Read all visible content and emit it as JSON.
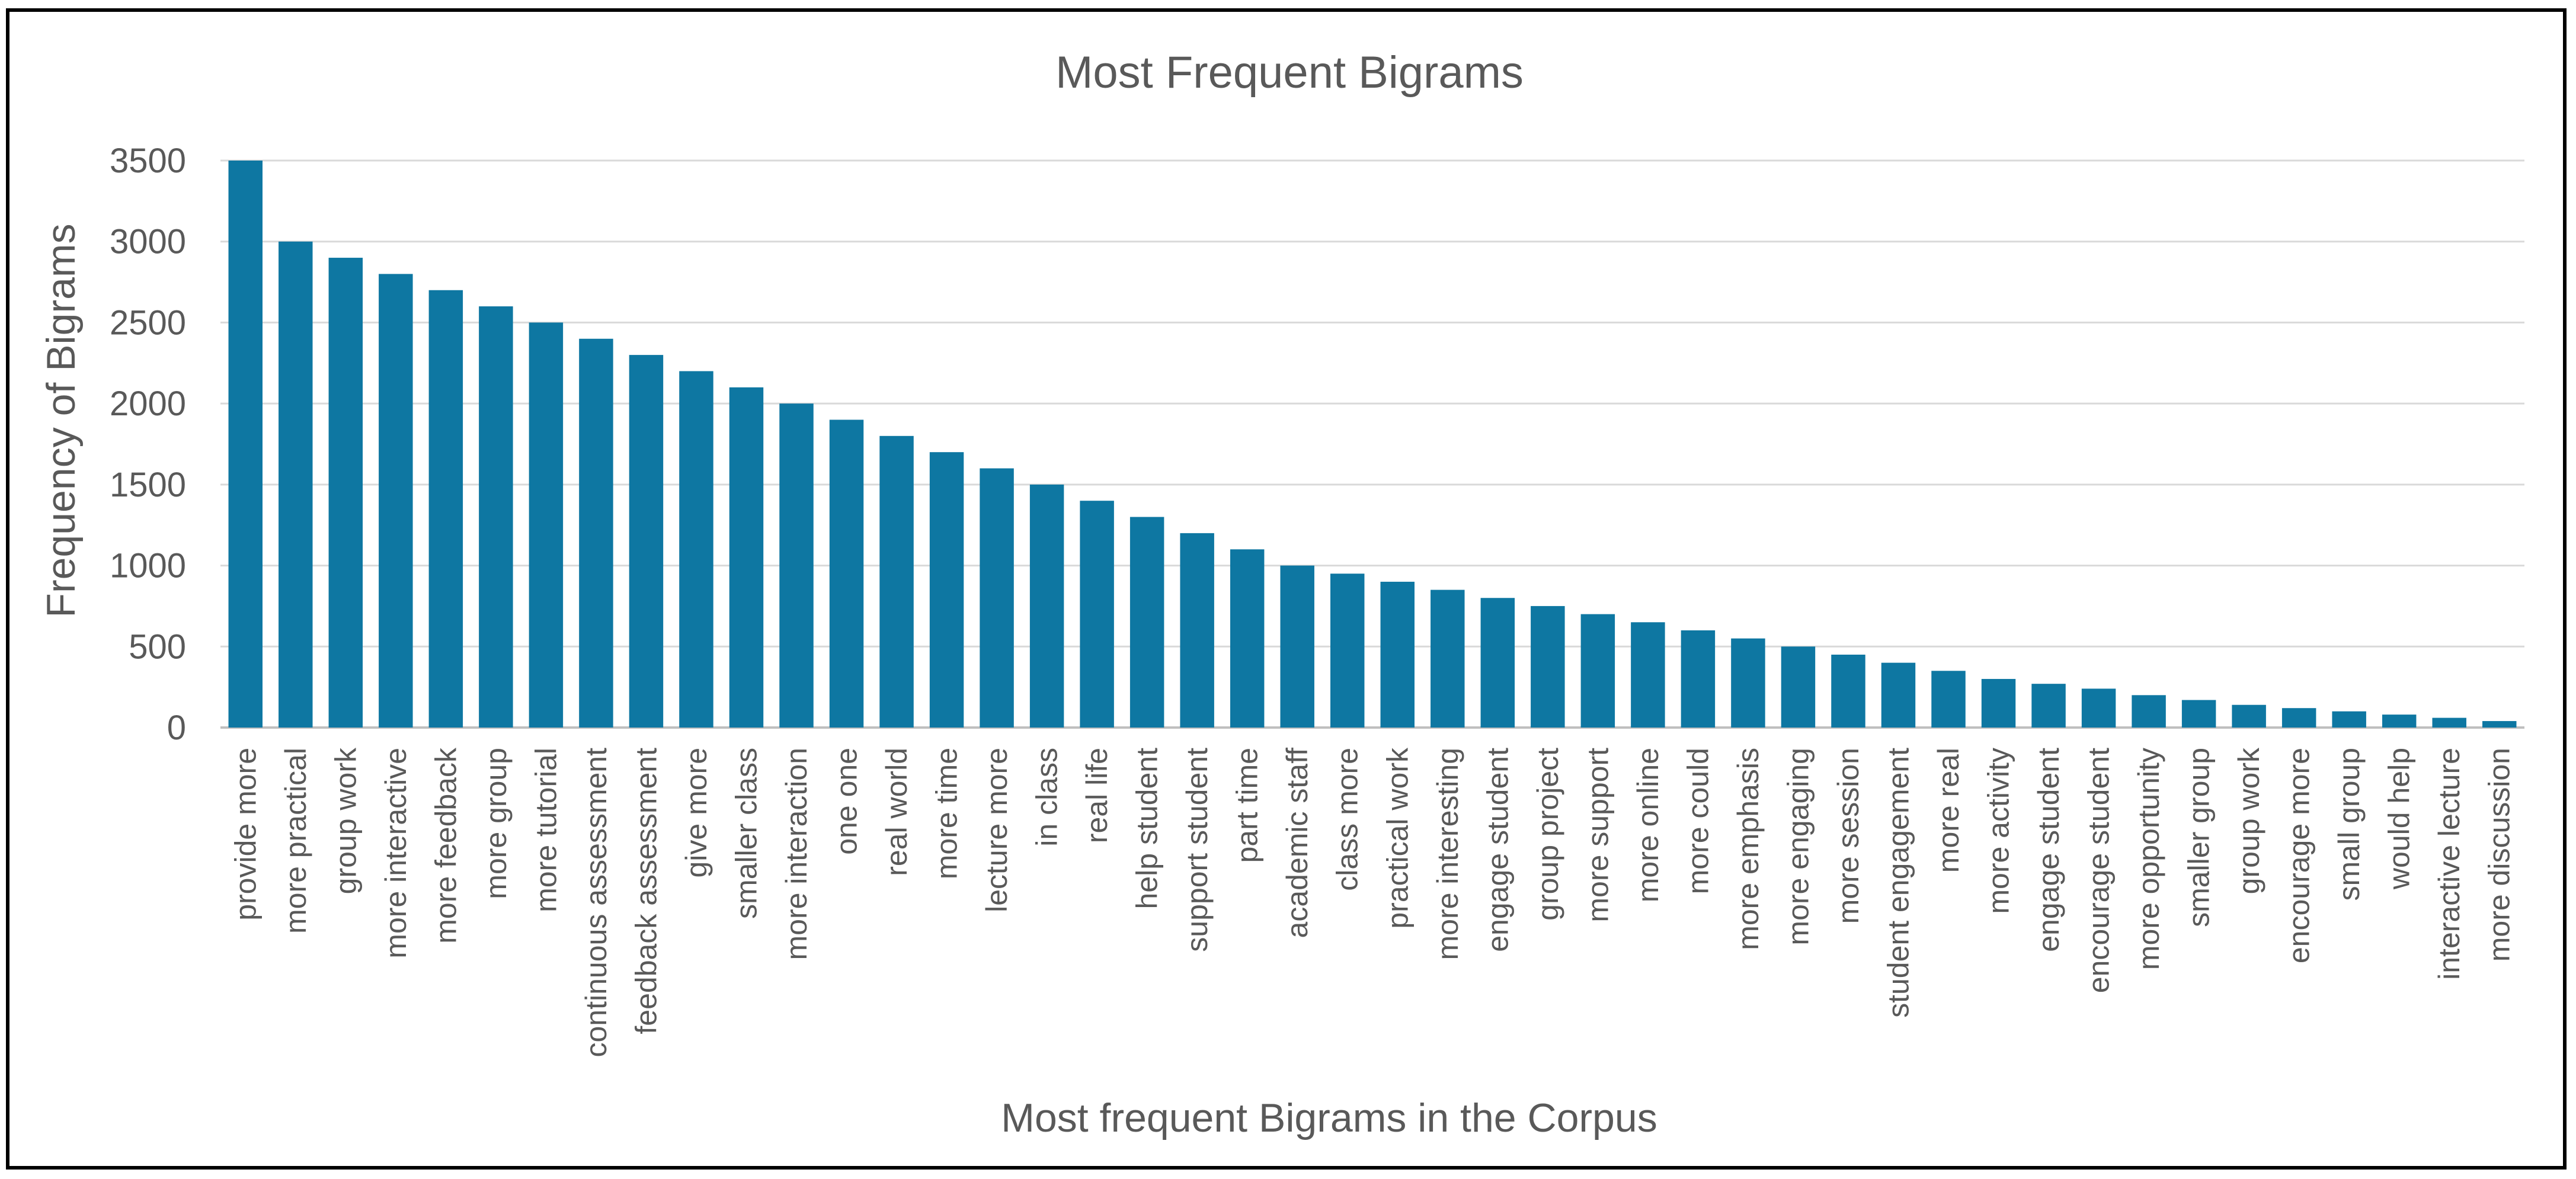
{
  "chart_data": {
    "type": "bar",
    "title": "Most Frequent Bigrams",
    "xlabel": "Most frequent Bigrams in the Corpus",
    "ylabel": "Frequency of Bigrams",
    "ylim": [
      0,
      3500
    ],
    "yticks": [
      "0",
      "500",
      "1000",
      "1500",
      "2000",
      "2500",
      "3000",
      "3500"
    ],
    "grid": true,
    "legend": "none",
    "colors": {
      "bar": "#0E77A2",
      "grid": "#D9D9D9",
      "axis": "#BFBFBF",
      "text": "#595959"
    },
    "categories": [
      "provide more",
      "more practical",
      "group work",
      "more interactive",
      "more feedback",
      "more group",
      "more tutorial",
      "continuous assessment",
      "feedback assessment",
      "give more",
      "smaller class",
      "more interaction",
      "one one",
      "real world",
      "more time",
      "lecture more",
      "in class",
      "real life",
      "help student",
      "support student",
      "part time",
      "academic staff",
      "class more",
      "practical work",
      "more interesting",
      "engage student",
      "group project",
      "more support",
      "more online",
      "more could",
      "more emphasis",
      "more engaging",
      "more session",
      "student engagement",
      "more real",
      "more activity",
      "engage student",
      "encourage student",
      "more opportunity",
      "smaller group",
      "group work",
      "encourage more",
      "small group",
      "would help",
      "interactive lecture",
      "more discussion"
    ],
    "values": [
      3500,
      3000,
      2900,
      2800,
      2700,
      2600,
      2500,
      2400,
      2300,
      2200,
      2100,
      2000,
      1900,
      1800,
      1700,
      1600,
      1500,
      1400,
      1300,
      1200,
      1100,
      1000,
      950,
      900,
      850,
      800,
      750,
      700,
      650,
      600,
      550,
      500,
      450,
      400,
      350,
      300,
      270,
      240,
      200,
      170,
      140,
      120,
      100,
      80,
      60,
      40
    ]
  }
}
